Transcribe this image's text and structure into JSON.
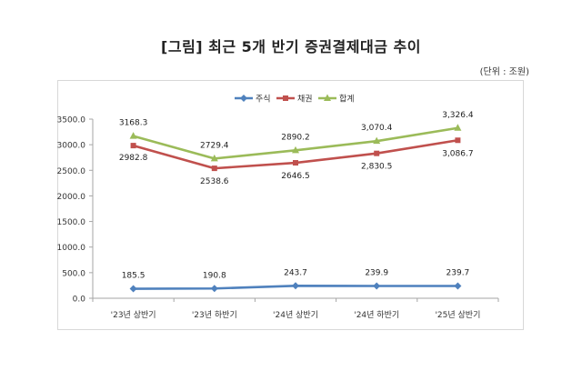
{
  "title": "[그림] 최근 5개 반기 증권결제대금 추이",
  "unit": "(단위 : 조원)",
  "chart_data": {
    "type": "line",
    "categories": [
      "'23년 상반기",
      "'23년 하반기",
      "'24년 상반기",
      "'24년 하반기",
      "'25년 상반기"
    ],
    "series": [
      {
        "name": "주식",
        "values": [
          185.5,
          190.8,
          243.7,
          239.9,
          239.7
        ],
        "labels": [
          "185.5",
          "190.8",
          "243.7",
          "239.9",
          "239.7"
        ],
        "color": "#4f81bd",
        "marker": "diamond"
      },
      {
        "name": "채권",
        "values": [
          2982.8,
          2538.6,
          2646.5,
          2830.5,
          3086.7
        ],
        "labels": [
          "2982.8",
          "2538.6",
          "2646.5",
          "2,830.5",
          "3,086.7"
        ],
        "color": "#c0504d",
        "marker": "square"
      },
      {
        "name": "합계",
        "values": [
          3168.3,
          2729.4,
          2890.2,
          3070.4,
          3326.4
        ],
        "labels": [
          "3168.3",
          "2729.4",
          "2890.2",
          "3,070.4",
          "3,326.4"
        ],
        "color": "#9bbb59",
        "marker": "triangle"
      }
    ],
    "y_ticks": [
      "0.0",
      "500.0",
      "1000.0",
      "1500.0",
      "2000.0",
      "2500.0",
      "3000.0",
      "3500.0"
    ],
    "ylim": [
      0,
      3500
    ],
    "grid": false,
    "legend_position": "top-center"
  }
}
